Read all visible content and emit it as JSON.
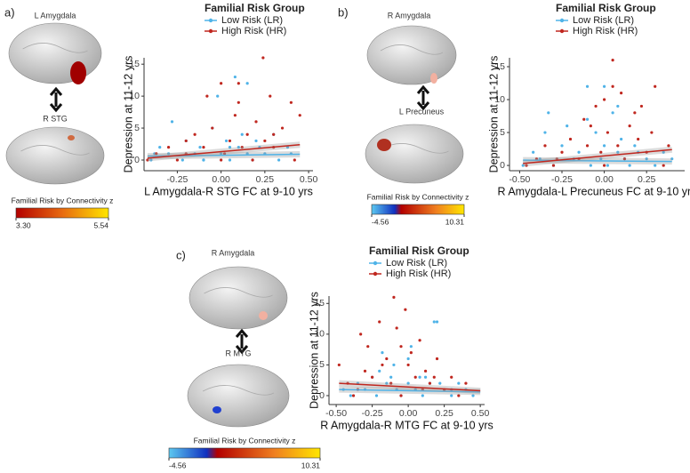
{
  "panels": [
    {
      "label": "a)",
      "top_region": "L Amygdala",
      "bottom_region": "R STG",
      "colorbar": {
        "title": "Familial Risk by Connectivity z",
        "ticks": [
          {
            "value": 3.3,
            "label": "3.30"
          },
          5.54
        ]
      }
    },
    {
      "label": "b)",
      "top_region": "R Amygdala",
      "bottom_region": "L Precuneus",
      "colorbar": {
        "title": "Familial Risk by Connectivity z",
        "ticks": [
          -4.56,
          10.31
        ]
      }
    },
    {
      "label": "c)",
      "top_region": "R Amygdala",
      "bottom_region": "R MTG",
      "colorbar": {
        "title": "Familial Risk by Connectivity z",
        "ticks": [
          -4.56,
          10.31
        ]
      }
    }
  ],
  "chart_data": [
    {
      "type": "scatter",
      "legend_title": "Familial Risk Group",
      "xlabel": "L Amygdala-R STG FC at 9-10 yrs",
      "ylabel": "Depression at 11-12 yrs",
      "xlim": [
        -0.44,
        0.525
      ],
      "ylim": [
        -1.67,
        16
      ],
      "xticks": [
        {
          "value": -0.25,
          "label": "-0.25"
        },
        {
          "value": 0,
          "label": "0.00"
        },
        {
          "value": 0.25,
          "label": "0.25"
        },
        {
          "value": 0.5,
          "label": "0.50"
        }
      ],
      "yticks": [
        0,
        5,
        10,
        15
      ],
      "series": [
        {
          "name": "Low Risk (LR)",
          "color": "#4fb3e8",
          "x": [
            -0.4,
            -0.35,
            -0.3,
            -0.28,
            -0.22,
            -0.2,
            -0.15,
            -0.12,
            -0.1,
            -0.05,
            -0.02,
            0,
            0.03,
            0.05,
            0.08,
            0.1,
            0.12,
            0.15,
            0.18,
            0.2,
            0.22,
            0.25,
            0.3,
            0.33,
            0.38,
            0.4,
            -0.38,
            -0.1,
            0.05,
            0.15
          ],
          "y": [
            0,
            2,
            1,
            6,
            0,
            3,
            1,
            2,
            0,
            5,
            10,
            1,
            3,
            0,
            13,
            2,
            4,
            1,
            0,
            3,
            2,
            1,
            4,
            0,
            2,
            1,
            1,
            0,
            2,
            12
          ],
          "fit_x": [
            -0.42,
            0.45
          ],
          "fit_y": [
            0.6,
            0.9
          ]
        },
        {
          "name": "High Risk (HR)",
          "color": "#c0271f",
          "x": [
            -0.42,
            -0.37,
            -0.3,
            -0.25,
            -0.2,
            -0.15,
            -0.1,
            -0.08,
            -0.05,
            0,
            0.02,
            0.05,
            0.08,
            0.1,
            0.12,
            0.15,
            0.18,
            0.2,
            0.24,
            0.25,
            0.28,
            0.3,
            0.35,
            0.4,
            0.42,
            0.45,
            -0.2,
            0,
            0.1,
            0.3
          ],
          "y": [
            0,
            1,
            2,
            0,
            3,
            4,
            2,
            10,
            5,
            12,
            1,
            3,
            7,
            9,
            2,
            4,
            0,
            6,
            16,
            3,
            10,
            2,
            5,
            9,
            0,
            7,
            1,
            0,
            12,
            4
          ],
          "fit_x": [
            -0.42,
            0.45
          ],
          "fit_y": [
            0.3,
            2.4
          ]
        }
      ]
    },
    {
      "type": "scatter",
      "legend_title": "Familial Risk Group",
      "xlabel": "R Amygdala-L Precuneus FC at 9-10 yrs",
      "ylabel": "Depression at 11-12 yrs",
      "xlim": [
        -0.56,
        0.475
      ],
      "ylim": [
        -0.8,
        16.35
      ],
      "xticks": [
        {
          "value": -0.5,
          "label": "-0.50"
        },
        {
          "value": -0.25,
          "label": "-0.25"
        },
        {
          "value": 0,
          "label": "0.00"
        },
        {
          "value": 0.25,
          "label": "0.25"
        }
      ],
      "yticks": [
        0,
        5,
        10,
        15
      ],
      "series": [
        {
          "name": "Low Risk (LR)",
          "color": "#4fb3e8",
          "x": [
            -0.48,
            -0.42,
            -0.38,
            -0.33,
            -0.3,
            -0.25,
            -0.22,
            -0.18,
            -0.15,
            -0.1,
            -0.08,
            -0.05,
            -0.02,
            0,
            0.02,
            0.05,
            0.08,
            0.1,
            0.12,
            0.15,
            0.18,
            0.2,
            0.25,
            0.3,
            0.35,
            0.4,
            -0.35,
            -0.1,
            0.0,
            0.08
          ],
          "y": [
            0,
            2,
            1,
            8,
            0,
            3,
            6,
            1,
            2,
            12,
            0,
            5,
            1,
            3,
            0,
            8,
            2,
            4,
            1,
            0,
            3,
            2,
            1,
            0,
            2,
            1,
            5,
            7,
            12,
            9
          ],
          "fit_x": [
            -0.48,
            0.4
          ],
          "fit_y": [
            0.8,
            0.6
          ]
        },
        {
          "name": "High Risk (HR)",
          "color": "#c0271f",
          "x": [
            -0.46,
            -0.4,
            -0.35,
            -0.3,
            -0.25,
            -0.2,
            -0.15,
            -0.12,
            -0.1,
            -0.05,
            -0.02,
            0,
            0.02,
            0.05,
            0.08,
            0.1,
            0.12,
            0.15,
            0.2,
            0.22,
            0.25,
            0.3,
            0.35,
            0.38,
            -0.28,
            -0.08,
            0.05,
            0.18,
            0.28,
            0.0
          ],
          "y": [
            0,
            1,
            3,
            0,
            2,
            4,
            1,
            7,
            3,
            9,
            2,
            10,
            5,
            16,
            3,
            11,
            1,
            6,
            4,
            9,
            2,
            12,
            0,
            3,
            1,
            6,
            12,
            8,
            5,
            0
          ],
          "fit_x": [
            -0.48,
            0.4
          ],
          "fit_y": [
            0.3,
            2.4
          ]
        }
      ]
    },
    {
      "type": "scatter",
      "legend_title": "Familial Risk Group",
      "xlabel": "R Amygdala-R MTG FC at 9-10 yrs",
      "ylabel": "Depression at 11-12 yrs",
      "xlim": [
        -0.55,
        0.53
      ],
      "ylim": [
        -1.45,
        16.2
      ],
      "xticks": [
        {
          "value": -0.5,
          "label": "-0.50"
        },
        {
          "value": -0.25,
          "label": "-0.25"
        },
        {
          "value": 0,
          "label": "0.00"
        },
        {
          "value": 0.25,
          "label": "0.25"
        },
        {
          "value": 0.5,
          "label": "0.50"
        }
      ],
      "yticks": [
        0,
        5,
        10,
        15
      ],
      "series": [
        {
          "name": "Low Risk (LR)",
          "color": "#4fb3e8",
          "x": [
            -0.45,
            -0.4,
            -0.35,
            -0.3,
            -0.25,
            -0.22,
            -0.18,
            -0.15,
            -0.1,
            -0.08,
            -0.05,
            0,
            0.02,
            0.05,
            0.08,
            0.1,
            0.15,
            0.18,
            0.2,
            0.25,
            0.3,
            0.35,
            0.4,
            0.45,
            -0.2,
            0.0,
            0.12,
            0.22,
            0.3,
            -0.12
          ],
          "y": [
            1,
            0,
            2,
            1,
            3,
            0,
            7,
            2,
            5,
            1,
            0,
            2,
            8,
            1,
            3,
            0,
            2,
            12,
            12,
            1,
            0,
            2,
            1,
            0,
            4,
            6,
            3,
            2,
            1,
            3
          ],
          "fit_x": [
            -0.48,
            0.5
          ],
          "fit_y": [
            1.0,
            0.6
          ]
        },
        {
          "name": "High Risk (HR)",
          "color": "#c0271f",
          "x": [
            -0.48,
            -0.42,
            -0.38,
            -0.33,
            -0.3,
            -0.25,
            -0.2,
            -0.15,
            -0.12,
            -0.1,
            -0.05,
            -0.02,
            0,
            0.05,
            0.08,
            0.1,
            0.12,
            0.15,
            0.2,
            0.25,
            0.3,
            0.35,
            0.4,
            -0.28,
            -0.18,
            -0.08,
            0.02,
            0.18,
            -0.35,
            -0.05
          ],
          "y": [
            5,
            2,
            0,
            10,
            4,
            3,
            12,
            6,
            2,
            16,
            8,
            14,
            5,
            3,
            9,
            1,
            4,
            2,
            6,
            1,
            3,
            0,
            2,
            8,
            5,
            11,
            7,
            3,
            1,
            0
          ],
          "fit_x": [
            -0.48,
            0.5
          ],
          "fit_y": [
            2.0,
            0.8
          ]
        }
      ]
    }
  ]
}
